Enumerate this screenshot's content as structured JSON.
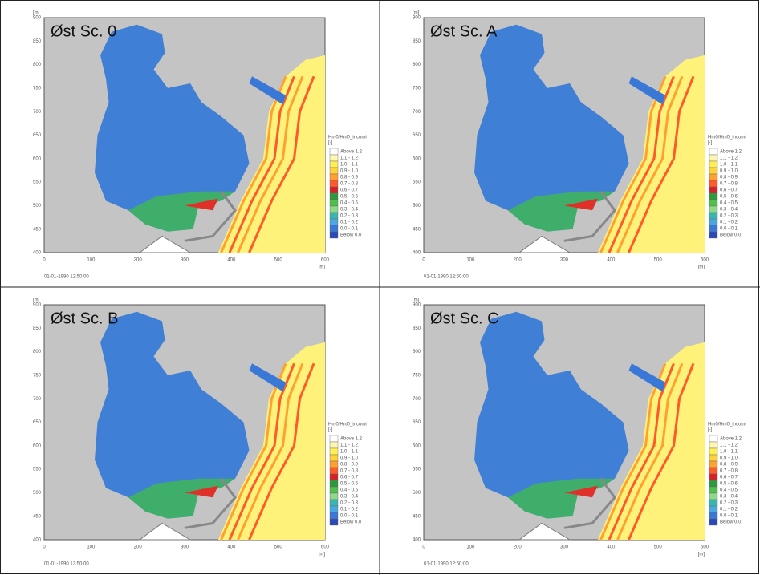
{
  "panels": [
    {
      "title": "Øst Sc. 0",
      "timestamp": "01-01-1990 12:50:00"
    },
    {
      "title": "Øst Sc. A",
      "timestamp": "01-01-1990 12:50:00"
    },
    {
      "title": "Øst Sc. B",
      "timestamp": "01-01-1990 12:50:00"
    },
    {
      "title": "Øst Sc. C",
      "timestamp": "01-01-1990 12:50:00"
    }
  ],
  "axes": {
    "x_unit": "[m]",
    "y_unit": "[m]",
    "xticks": [
      "0",
      "100",
      "200",
      "300",
      "400",
      "500",
      "600"
    ],
    "yticks": [
      "400",
      "450",
      "500",
      "550",
      "600",
      "650",
      "700",
      "750",
      "800",
      "850",
      "900"
    ]
  },
  "legend": {
    "title": "Hm0/Hm0_incomi",
    "unit": "[-]",
    "labels": [
      "Above 1.2",
      "1.1 - 1.2",
      "1.0 - 1.1",
      "0.9 - 1.0",
      "0.8 - 0.9",
      "0.7 - 0.8",
      "0.6 - 0.7",
      "0.5 - 0.6",
      "0.4 - 0.5",
      "0.3 - 0.4",
      "0.2 - 0.3",
      "0.1 - 0.2",
      "0.0 - 0.1",
      "Below 0.0"
    ]
  }
}
